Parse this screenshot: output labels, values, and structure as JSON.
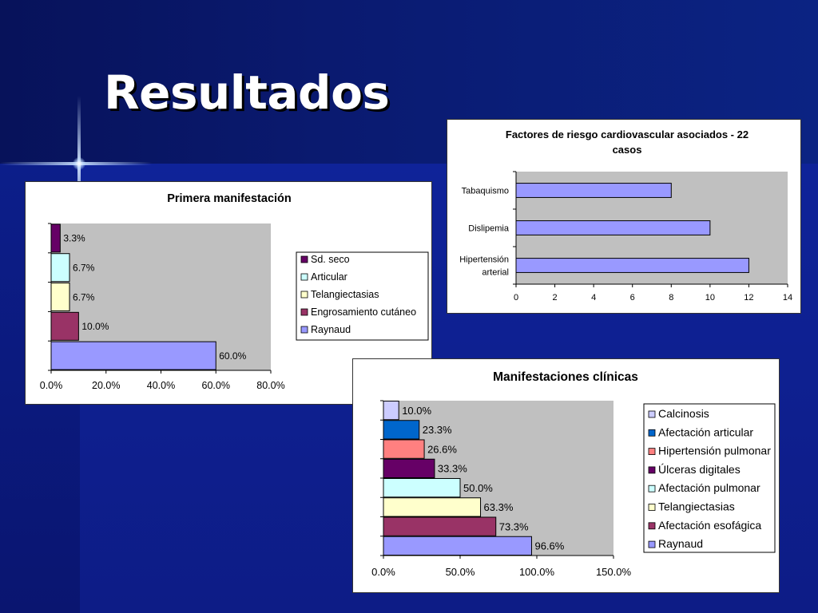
{
  "slide": {
    "title": "Resultados"
  },
  "colors": {
    "plot_bg": "#c0c0c0",
    "lavender": "#9999ff",
    "plum": "#993366",
    "light_yellow": "#ffffcc",
    "light_cyan": "#ccffff",
    "dark_purple": "#660066",
    "salmon": "#ff8080",
    "blue": "#0066cc",
    "light_lavender": "#ccccff"
  },
  "chart_data": [
    {
      "type": "bar",
      "orientation": "horizontal",
      "title": "Primera manifestación",
      "categories": [
        "Raynaud",
        "Engrosamiento cutáneo",
        "Telangiectasias",
        "Articular",
        "Sd. seco"
      ],
      "values": [
        60.0,
        10.0,
        6.7,
        6.7,
        3.3
      ],
      "value_labels": [
        "60.0%",
        "10.0%",
        "6.7%",
        "6.7%",
        "3.3%"
      ],
      "bar_colors": [
        "#9999ff",
        "#993366",
        "#ffffcc",
        "#ccffff",
        "#660066"
      ],
      "xlim": [
        0,
        80
      ],
      "x_ticks": [
        "0.0%",
        "20.0%",
        "40.0%",
        "60.0%",
        "80.0%"
      ],
      "legend": [
        "Sd. seco",
        "Articular",
        "Telangiectasias",
        "Engrosamiento cutáneo",
        "Raynaud"
      ],
      "legend_colors": [
        "#660066",
        "#ccffff",
        "#ffffcc",
        "#993366",
        "#9999ff"
      ],
      "legend_position": "right",
      "grid": false
    },
    {
      "type": "bar",
      "orientation": "horizontal",
      "title": "Factores de riesgo cardiovascular asociados - 22 casos",
      "title_lines": [
        "Factores de riesgo cardiovascular asociados - 22",
        "casos"
      ],
      "categories": [
        "Hipertensión arterial",
        "Dislipemia",
        "Tabaquismo"
      ],
      "category_lines": [
        [
          "Hipertensión",
          "arterial"
        ],
        [
          "Dislipemia"
        ],
        [
          "Tabaquismo"
        ]
      ],
      "values": [
        12,
        10,
        8
      ],
      "bar_color": "#9999ff",
      "xlim": [
        0,
        14
      ],
      "x_ticks": [
        "0",
        "2",
        "4",
        "6",
        "8",
        "10",
        "12",
        "14"
      ],
      "grid": false
    },
    {
      "type": "bar",
      "orientation": "horizontal",
      "title": "Manifestaciones clínicas",
      "categories": [
        "Raynaud",
        "Afectación esofágica",
        "Telangiectasias",
        "Afectación pulmonar",
        "Úlceras digitales",
        "Hipertensión pulmonar",
        "Afectación articular",
        "Calcinosis"
      ],
      "values": [
        96.6,
        73.3,
        63.3,
        50.0,
        33.3,
        26.6,
        23.3,
        10.0
      ],
      "value_labels": [
        "96.6%",
        "73.3%",
        "63.3%",
        "50.0%",
        "33.3%",
        "26.6%",
        "23.3%",
        "10.0%"
      ],
      "bar_colors": [
        "#9999ff",
        "#993366",
        "#ffffcc",
        "#ccffff",
        "#660066",
        "#ff8080",
        "#0066cc",
        "#ccccff"
      ],
      "xlim": [
        0,
        150
      ],
      "x_ticks": [
        "0.0%",
        "50.0%",
        "100.0%",
        "150.0%"
      ],
      "legend": [
        "Calcinosis",
        "Afectación articular",
        "Hipertensión pulmonar",
        "Úlceras digitales",
        "Afectación pulmonar",
        "Telangiectasias",
        "Afectación esofágica",
        "Raynaud"
      ],
      "legend_colors": [
        "#ccccff",
        "#0066cc",
        "#ff8080",
        "#660066",
        "#ccffff",
        "#ffffcc",
        "#993366",
        "#9999ff"
      ],
      "legend_position": "right",
      "grid": false
    }
  ]
}
